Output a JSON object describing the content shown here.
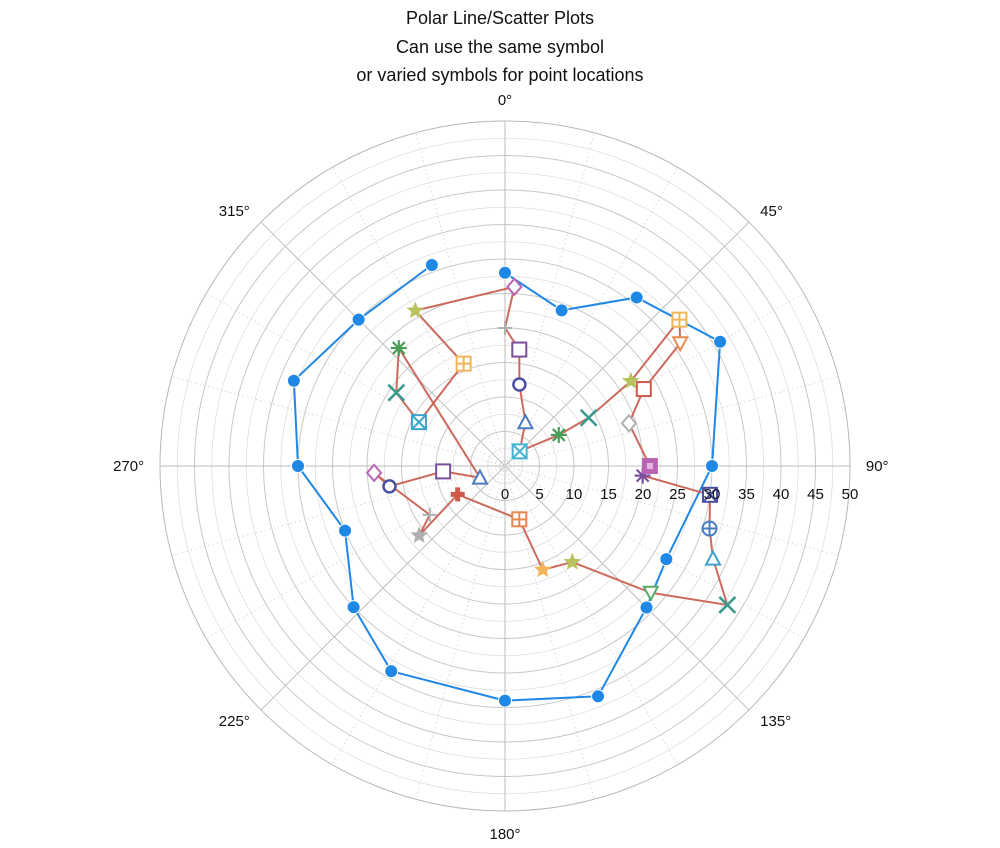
{
  "chart_data": {
    "type": "scatter",
    "subtype": "polar",
    "title": [
      "Polar Line/Scatter Plots",
      "Can use the same symbol",
      "or varied symbols for point locations"
    ],
    "radial_axis": {
      "range": [
        0,
        50
      ],
      "ticks": [
        0,
        5,
        10,
        15,
        20,
        25,
        30,
        35,
        40,
        45,
        50
      ],
      "tick_labels": [
        "0",
        "5",
        "10",
        "15",
        "20",
        "25",
        "30",
        "35",
        "40",
        "45",
        "50"
      ],
      "minor_step": 2.5,
      "label_angle_deg": 90
    },
    "angular_axis": {
      "direction": "clockwise",
      "zero_at": "top",
      "labels": [
        "0°",
        "45°",
        "90°",
        "135°",
        "180°",
        "225°",
        "270°",
        "315°"
      ],
      "minor_step_deg": 15
    },
    "grid": true,
    "series": [
      {
        "color": "#1f87e5",
        "marker": "circle",
        "closed": false,
        "points": [
          {
            "theta": 0,
            "r": 28
          },
          {
            "theta": 20,
            "r": 24
          },
          {
            "theta": 38,
            "r": 31
          },
          {
            "theta": 60,
            "r": 36
          },
          {
            "theta": 90,
            "r": 30
          },
          {
            "theta": 120,
            "r": 27
          },
          {
            "theta": 135,
            "r": 29
          },
          {
            "theta": 158,
            "r": 36
          },
          {
            "theta": 180,
            "r": 34
          },
          {
            "theta": 209,
            "r": 34
          },
          {
            "theta": 227,
            "r": 30
          },
          {
            "theta": 248,
            "r": 25
          },
          {
            "theta": 270,
            "r": 30
          },
          {
            "theta": 292,
            "r": 33
          },
          {
            "theta": 315,
            "r": 30
          },
          {
            "theta": 340,
            "r": 31
          }
        ]
      },
      {
        "color": "#cc6a5d",
        "varied_markers": true,
        "points": [
          {
            "theta": 45,
            "r": 3,
            "marker": "boxx",
            "color": "#45b3d4"
          },
          {
            "theta": 25,
            "r": 7,
            "marker": "triangle",
            "color": "#4a7cc0"
          },
          {
            "theta": 10,
            "r": 12,
            "marker": "circle-open",
            "color": "#4a50a3"
          },
          {
            "theta": 7,
            "r": 17,
            "marker": "square",
            "color": "#7a4f9c"
          },
          {
            "theta": 0,
            "r": 20,
            "marker": "plus",
            "color": "#b0b0b0"
          },
          {
            "theta": 3,
            "r": 26,
            "marker": "diamond",
            "color": "#b963b3"
          },
          {
            "theta": 330,
            "r": 26,
            "marker": "star",
            "color": "#b9c25e"
          },
          {
            "theta": 338,
            "r": 16,
            "marker": "boxplus",
            "color": "#f2b55a"
          },
          {
            "theta": 297,
            "r": 14,
            "marker": "boxx",
            "color": "#3aa4cc"
          },
          {
            "theta": 304,
            "r": 19,
            "marker": "x",
            "color": "#3a9a8d"
          },
          {
            "theta": 318,
            "r": 23,
            "marker": "asterisk",
            "color": "#4a9e57"
          },
          {
            "theta": 245,
            "r": 4,
            "marker": "triangle",
            "color": "#4a7cc0"
          },
          {
            "theta": 265,
            "r": 9,
            "marker": "square",
            "color": "#7a4f9c"
          },
          {
            "theta": 260,
            "r": 17,
            "marker": "circle-open",
            "color": "#4a50a3"
          },
          {
            "theta": 267,
            "r": 19,
            "marker": "diamond",
            "color": "#b963b3"
          },
          {
            "theta": 237,
            "r": 13,
            "marker": "plus",
            "color": "#b0b0b0"
          },
          {
            "theta": 231,
            "r": 16,
            "marker": "star",
            "color": "#b0b0b0"
          },
          {
            "theta": 239,
            "r": 8,
            "marker": "cross-bold",
            "color": "#d05a4a"
          },
          {
            "theta": 165,
            "r": 8,
            "marker": "boxplus",
            "color": "#e9894e"
          },
          {
            "theta": 160,
            "r": 16,
            "marker": "star",
            "color": "#f2b55a"
          },
          {
            "theta": 145,
            "r": 17,
            "marker": "star",
            "color": "#b9c25e"
          },
          {
            "theta": 131,
            "r": 28,
            "marker": "triangle-down",
            "color": "#5aaa6a"
          },
          {
            "theta": 122,
            "r": 38,
            "marker": "x",
            "color": "#3a9a8d"
          },
          {
            "theta": 114,
            "r": 33,
            "marker": "triangle",
            "color": "#3aa4cc"
          },
          {
            "theta": 107,
            "r": 31,
            "marker": "circle-plus",
            "color": "#4a7cc0"
          },
          {
            "theta": 98,
            "r": 30,
            "marker": "boxx",
            "color": "#4a50a3"
          },
          {
            "theta": 94,
            "r": 20,
            "marker": "asterisk",
            "color": "#7a4f9c"
          },
          {
            "theta": 90,
            "r": 21,
            "marker": "square-filled",
            "color": "#b963b3"
          },
          {
            "theta": 71,
            "r": 19,
            "marker": "diamond",
            "color": "#b0b0b0"
          },
          {
            "theta": 61,
            "r": 23,
            "marker": "square",
            "color": "#d05a4a"
          },
          {
            "theta": 55,
            "r": 31,
            "marker": "triangle-down",
            "color": "#e9894e"
          },
          {
            "theta": 50,
            "r": 33,
            "marker": "boxplus",
            "color": "#f2b55a"
          },
          {
            "theta": 56,
            "r": 22,
            "marker": "star",
            "color": "#b9c25e"
          },
          {
            "theta": 60,
            "r": 14,
            "marker": "x",
            "color": "#3a9a8d"
          },
          {
            "theta": 60,
            "r": 9,
            "marker": "asterisk",
            "color": "#4a9e57"
          },
          {
            "theta": 45,
            "r": 3,
            "marker": "none",
            "color": "#cc6a5d"
          }
        ]
      }
    ]
  }
}
